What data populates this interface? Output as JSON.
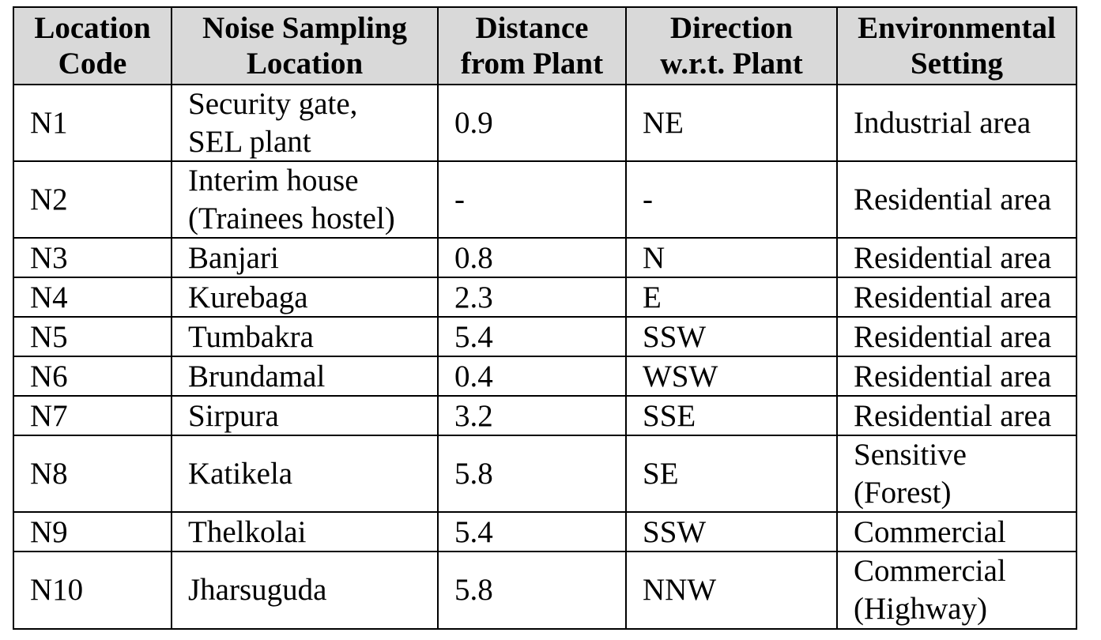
{
  "table": {
    "headers": [
      [
        "Location",
        "Code"
      ],
      [
        "Noise Sampling",
        "Location"
      ],
      [
        "Distance",
        "from Plant"
      ],
      [
        "Direction",
        "w.r.t. Plant"
      ],
      [
        "Environmental",
        "Setting"
      ]
    ],
    "rows": [
      {
        "code": "N1",
        "location": [
          "Security gate,",
          "SEL plant"
        ],
        "distance": "0.9",
        "direction": "NE",
        "setting": [
          "Industrial area"
        ]
      },
      {
        "code": "N2",
        "location": [
          "Interim house",
          "(Trainees hostel)"
        ],
        "distance": "-",
        "direction": "-",
        "setting": [
          "Residential area"
        ]
      },
      {
        "code": "N3",
        "location": [
          "Banjari"
        ],
        "distance": "0.8",
        "direction": "N",
        "setting": [
          "Residential area"
        ]
      },
      {
        "code": "N4",
        "location": [
          "Kurebaga"
        ],
        "distance": "2.3",
        "direction": "E",
        "setting": [
          "Residential area"
        ]
      },
      {
        "code": "N5",
        "location": [
          "Tumbakra"
        ],
        "distance": "5.4",
        "direction": "SSW",
        "setting": [
          "Residential area"
        ]
      },
      {
        "code": "N6",
        "location": [
          "Brundamal"
        ],
        "distance": "0.4",
        "direction": "WSW",
        "setting": [
          "Residential area"
        ]
      },
      {
        "code": "N7",
        "location": [
          "Sirpura"
        ],
        "distance": "3.2",
        "direction": "SSE",
        "setting": [
          "Residential area"
        ]
      },
      {
        "code": "N8",
        "location": [
          "Katikela"
        ],
        "distance": "5.8",
        "direction": "SE",
        "setting": [
          "Sensitive",
          "(Forest)"
        ]
      },
      {
        "code": "N9",
        "location": [
          "Thelkolai"
        ],
        "distance": "5.4",
        "direction": "SSW",
        "setting": [
          "Commercial"
        ]
      },
      {
        "code": "N10",
        "location": [
          "Jharsuguda"
        ],
        "distance": "5.8",
        "direction": "NNW",
        "setting": [
          "Commercial",
          "(Highway)"
        ]
      }
    ]
  }
}
